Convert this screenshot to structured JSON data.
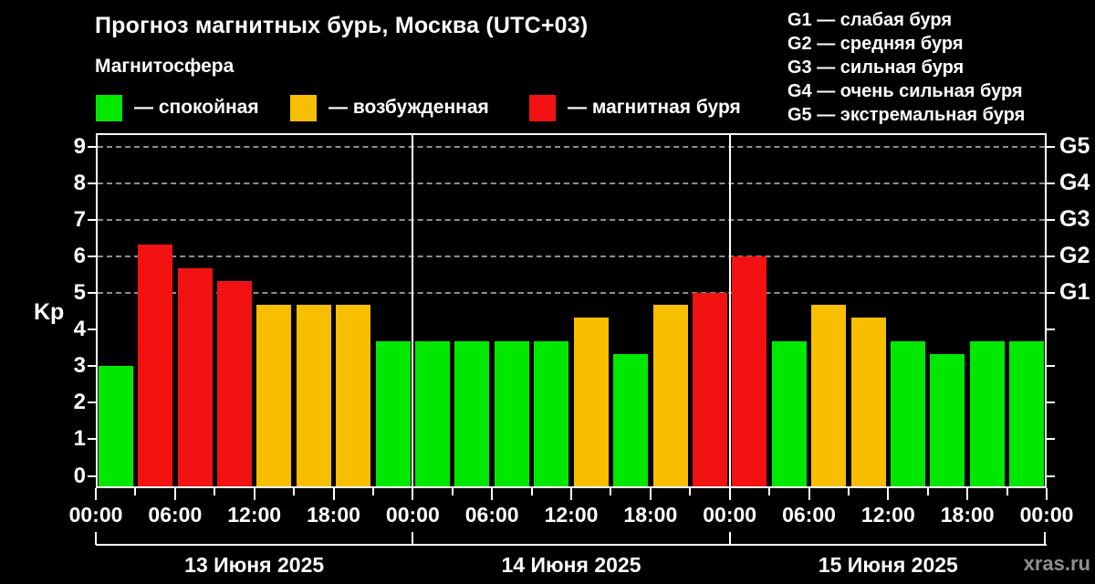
{
  "header": {
    "title": "Прогноз магнитных бурь, Москва (UTC+03)",
    "subtitle": "Магнитосфера"
  },
  "legend": [
    {
      "key": "quiet",
      "label": "— спокойная",
      "color": "#00e800"
    },
    {
      "key": "active",
      "label": "— возбужденная",
      "color": "#f8be00"
    },
    {
      "key": "storm",
      "label": "— магнитная буря",
      "color": "#f21212"
    }
  ],
  "storm_scale_legend": [
    "G1 — слабая буря",
    "G2 — средняя буря",
    "G3 — сильная буря",
    "G4 — очень сильная буря",
    "G5 — экстремальная буря"
  ],
  "watermark": "xras.ru",
  "chart_data": {
    "type": "bar",
    "title": "Прогноз магнитных бурь, Москва (UTC+03)",
    "subtitle": "Магнитосфера",
    "ylabel": "Kp",
    "ylim": [
      0,
      9
    ],
    "y_ticks": [
      "0",
      "1",
      "2",
      "3",
      "4",
      "5",
      "6",
      "7",
      "8",
      "9"
    ],
    "gridlines_at_kp": [
      5,
      6,
      7,
      8,
      9
    ],
    "grid": "dashed horizontal lines at storm levels G1-G5",
    "legend_position": "top",
    "right_axis": [
      {
        "label": "G1",
        "kp": 5
      },
      {
        "label": "G2",
        "kp": 6
      },
      {
        "label": "G3",
        "kp": 7
      },
      {
        "label": "G4",
        "kp": 8
      },
      {
        "label": "G5",
        "kp": 9
      }
    ],
    "hours_per_bar": 3,
    "bars_per_day": 8,
    "x_tick_labels": [
      "00:00",
      "06:00",
      "12:00",
      "18:00",
      "00:00",
      "06:00",
      "12:00",
      "18:00",
      "00:00",
      "06:00",
      "12:00",
      "18:00",
      "00:00"
    ],
    "days": [
      {
        "date": "13 Июня 2025",
        "values": [
          3.0,
          6.33,
          5.67,
          5.33,
          4.67,
          4.67,
          4.67,
          3.67
        ],
        "levels": [
          "quiet",
          "storm",
          "storm",
          "storm",
          "active",
          "active",
          "active",
          "quiet"
        ]
      },
      {
        "date": "14 Июня 2025",
        "values": [
          3.67,
          3.67,
          3.67,
          3.67,
          4.33,
          3.33,
          4.67,
          5.0
        ],
        "levels": [
          "quiet",
          "quiet",
          "quiet",
          "quiet",
          "active",
          "quiet",
          "active",
          "storm"
        ]
      },
      {
        "date": "15 Июня 2025",
        "values": [
          6.0,
          3.67,
          4.67,
          4.33,
          3.67,
          3.33,
          3.67,
          3.67
        ],
        "levels": [
          "storm",
          "quiet",
          "active",
          "active",
          "quiet",
          "quiet",
          "quiet",
          "quiet"
        ]
      }
    ]
  }
}
